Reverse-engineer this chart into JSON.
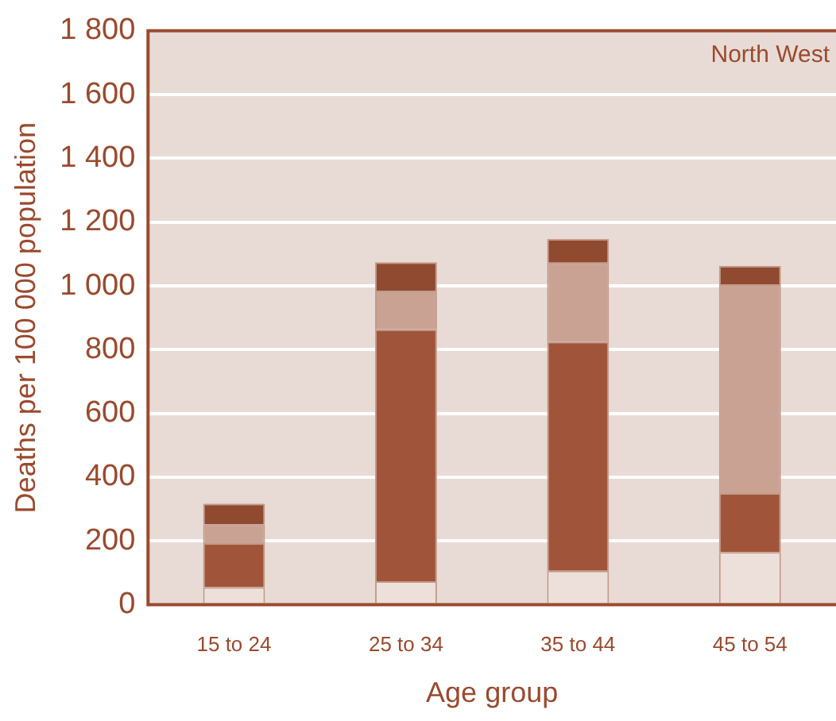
{
  "chart_data": {
    "type": "bar",
    "stacked": true,
    "xlabel": "Age group",
    "ylabel": "Deaths per 100 000 population",
    "annotations": [
      "North West"
    ],
    "categories": [
      "15 to 24",
      "25 to 34",
      "35 to 44",
      "45 to 54"
    ],
    "series": [
      {
        "color": "#ede0da",
        "values": [
          55,
          74,
          107,
          165
        ]
      },
      {
        "color": "#a0553a",
        "values": [
          138,
          790,
          718,
          185
        ]
      },
      {
        "color": "#c9a293",
        "values": [
          59,
          121,
          248,
          655
        ]
      },
      {
        "color": "#8f4a30",
        "values": [
          65,
          89,
          74,
          58
        ]
      }
    ],
    "ylim": [
      0,
      1800
    ],
    "yticks": [
      0,
      200,
      400,
      600,
      800,
      {
        "value": 1000,
        "label": "1 000"
      },
      {
        "value": 1200,
        "label": "1 200"
      },
      {
        "value": 1400,
        "label": "1 400"
      },
      {
        "value": 1600,
        "label": "1 600"
      },
      {
        "value": 1800,
        "label": "1 800"
      }
    ],
    "grid": "y"
  }
}
